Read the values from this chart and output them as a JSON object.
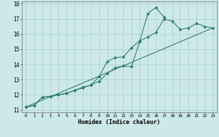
{
  "title": "",
  "xlabel": "Humidex (Indice chaleur)",
  "x": [
    0,
    1,
    2,
    3,
    4,
    5,
    6,
    7,
    8,
    9,
    10,
    11,
    12,
    13,
    14,
    15,
    16,
    17,
    18,
    19,
    20,
    21,
    22,
    23
  ],
  "line1_x": [
    0,
    1,
    2,
    3,
    4,
    5,
    6,
    7,
    8,
    9,
    10,
    11,
    12,
    13,
    14,
    15,
    16,
    17
  ],
  "line1_y": [
    11.2,
    11.3,
    11.85,
    11.9,
    12.0,
    12.1,
    12.3,
    12.45,
    12.65,
    12.9,
    13.4,
    13.8,
    13.9,
    13.85,
    15.5,
    17.35,
    17.75,
    17.1
  ],
  "line2_x": [
    0,
    1,
    2,
    3,
    4,
    5,
    6,
    7,
    8,
    9,
    10,
    11,
    12,
    13,
    14,
    15,
    16,
    17,
    18,
    19,
    20,
    21,
    22,
    23
  ],
  "line2_y": [
    11.2,
    11.3,
    11.85,
    11.9,
    12.0,
    12.1,
    12.3,
    12.5,
    12.65,
    13.2,
    14.2,
    14.45,
    14.5,
    15.1,
    15.55,
    15.8,
    16.1,
    17.0,
    16.85,
    16.3,
    16.4,
    16.7,
    16.5,
    16.4
  ],
  "line3_x": [
    0,
    23
  ],
  "line3_y": [
    11.2,
    16.4
  ],
  "line_color": "#2e7d6e",
  "bg_color": "#cce8e8",
  "grid_color": "#aacccc",
  "ylim": [
    11,
    18
  ],
  "xlim": [
    -0.5,
    23.5
  ],
  "yticks": [
    11,
    12,
    13,
    14,
    15,
    16,
    17,
    18
  ],
  "xticks": [
    0,
    1,
    2,
    3,
    4,
    5,
    6,
    7,
    8,
    9,
    10,
    11,
    12,
    13,
    14,
    15,
    16,
    17,
    18,
    19,
    20,
    21,
    22,
    23
  ]
}
